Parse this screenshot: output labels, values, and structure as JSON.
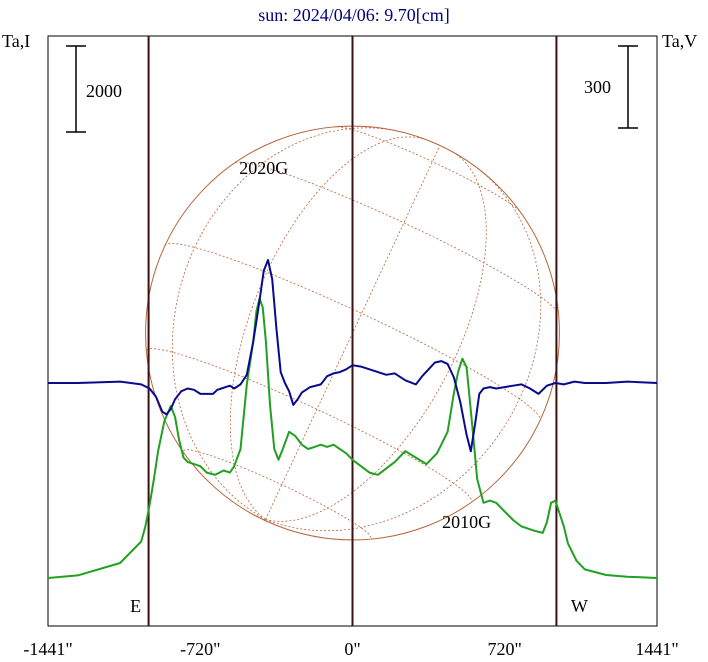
{
  "chart_data": {
    "type": "line",
    "title": "sun: 2024/04/06: 9.70[cm]",
    "left_axis_label": "Ta,I",
    "right_axis_label": "Ta,V",
    "left_scale_bar": "2000",
    "right_scale_bar": "300",
    "x_unit": "arcsec",
    "xlim": [
      -1441,
      1441
    ],
    "x_ticks": [
      -1441,
      -720,
      0,
      720,
      1441
    ],
    "x_tick_labels": [
      "-1441\"",
      "-720\"",
      "0\"",
      "720\"",
      "1441\""
    ],
    "limb_x": [
      -965,
      965
    ],
    "limb_labels": {
      "east": "E",
      "west": "W"
    },
    "annotations": [
      {
        "text": "2020G",
        "x": -420
      },
      {
        "text": "2010G",
        "x": 540
      }
    ],
    "colors": {
      "stokes_I": "#22a022",
      "stokes_V": "#0a0a8c",
      "solar_disk": "#b5653a",
      "vertical_lines": "#3a1010",
      "title": "#00007a"
    },
    "series": [
      {
        "key": "I",
        "color": "#22a022",
        "x": [
          -1441,
          -1300,
          -1100,
          -1000,
          -980,
          -960,
          -940,
          -920,
          -890,
          -860,
          -840,
          -820,
          -800,
          -780,
          -750,
          -720,
          -690,
          -650,
          -610,
          -580,
          -560,
          -530,
          -500,
          -470,
          -455,
          -440,
          -425,
          -410,
          -390,
          -370,
          -350,
          -330,
          -300,
          -270,
          -240,
          -210,
          -180,
          -150,
          -120,
          -90,
          -60,
          -30,
          0,
          40,
          80,
          120,
          160,
          200,
          250,
          300,
          350,
          400,
          450,
          480,
          500,
          520,
          540,
          560,
          590,
          620,
          650,
          680,
          720,
          760,
          800,
          860,
          900,
          920,
          940,
          960,
          980,
          1000,
          1020,
          1060,
          1100,
          1200,
          1300,
          1441
        ],
        "y": [
          0,
          60,
          350,
          850,
          1200,
          1700,
          2300,
          2950,
          3650,
          4000,
          3750,
          3200,
          2800,
          2700,
          2650,
          2600,
          2450,
          2400,
          2500,
          2450,
          2600,
          3000,
          4500,
          5500,
          6200,
          6500,
          6300,
          5500,
          4000,
          3000,
          2750,
          3000,
          3400,
          3300,
          3100,
          3000,
          3050,
          3100,
          3050,
          3100,
          3000,
          2900,
          2750,
          2600,
          2450,
          2400,
          2550,
          2700,
          2950,
          2800,
          2650,
          2900,
          3400,
          4300,
          4800,
          5100,
          4900,
          3900,
          2300,
          1750,
          1800,
          1750,
          1550,
          1350,
          1200,
          1100,
          1050,
          1300,
          1750,
          1800,
          1500,
          1200,
          800,
          400,
          200,
          70,
          30,
          0
        ]
      },
      {
        "key": "V",
        "color": "#0a0a8c",
        "x": [
          -1441,
          -1300,
          -1100,
          -1000,
          -960,
          -930,
          -900,
          -880,
          -860,
          -840,
          -810,
          -780,
          -750,
          -720,
          -690,
          -660,
          -640,
          -620,
          -600,
          -580,
          -560,
          -530,
          -500,
          -470,
          -440,
          -420,
          -400,
          -380,
          -360,
          -340,
          -320,
          -300,
          -280,
          -260,
          -240,
          -200,
          -150,
          -120,
          -90,
          -60,
          -30,
          0,
          40,
          80,
          120,
          160,
          200,
          250,
          300,
          330,
          360,
          390,
          420,
          450,
          480,
          510,
          540,
          560,
          580,
          600,
          620,
          650,
          680,
          720,
          760,
          800,
          840,
          880,
          920,
          960,
          1000,
          1050,
          1100,
          1200,
          1300,
          1441
        ],
        "y": [
          0,
          0,
          5,
          -5,
          -20,
          -50,
          -105,
          -115,
          -95,
          -60,
          -30,
          -20,
          -25,
          -40,
          -40,
          -40,
          -25,
          -20,
          -15,
          -10,
          -20,
          -5,
          30,
          150,
          300,
          410,
          450,
          380,
          200,
          40,
          0,
          -30,
          -80,
          -60,
          -35,
          -15,
          -5,
          25,
          35,
          40,
          50,
          65,
          60,
          50,
          40,
          30,
          35,
          10,
          -5,
          25,
          50,
          75,
          80,
          70,
          20,
          -70,
          -190,
          -250,
          -150,
          -40,
          -20,
          -15,
          -20,
          -15,
          -10,
          -5,
          -20,
          -40,
          -10,
          0,
          -5,
          5,
          0,
          0,
          5,
          0
        ]
      }
    ]
  }
}
